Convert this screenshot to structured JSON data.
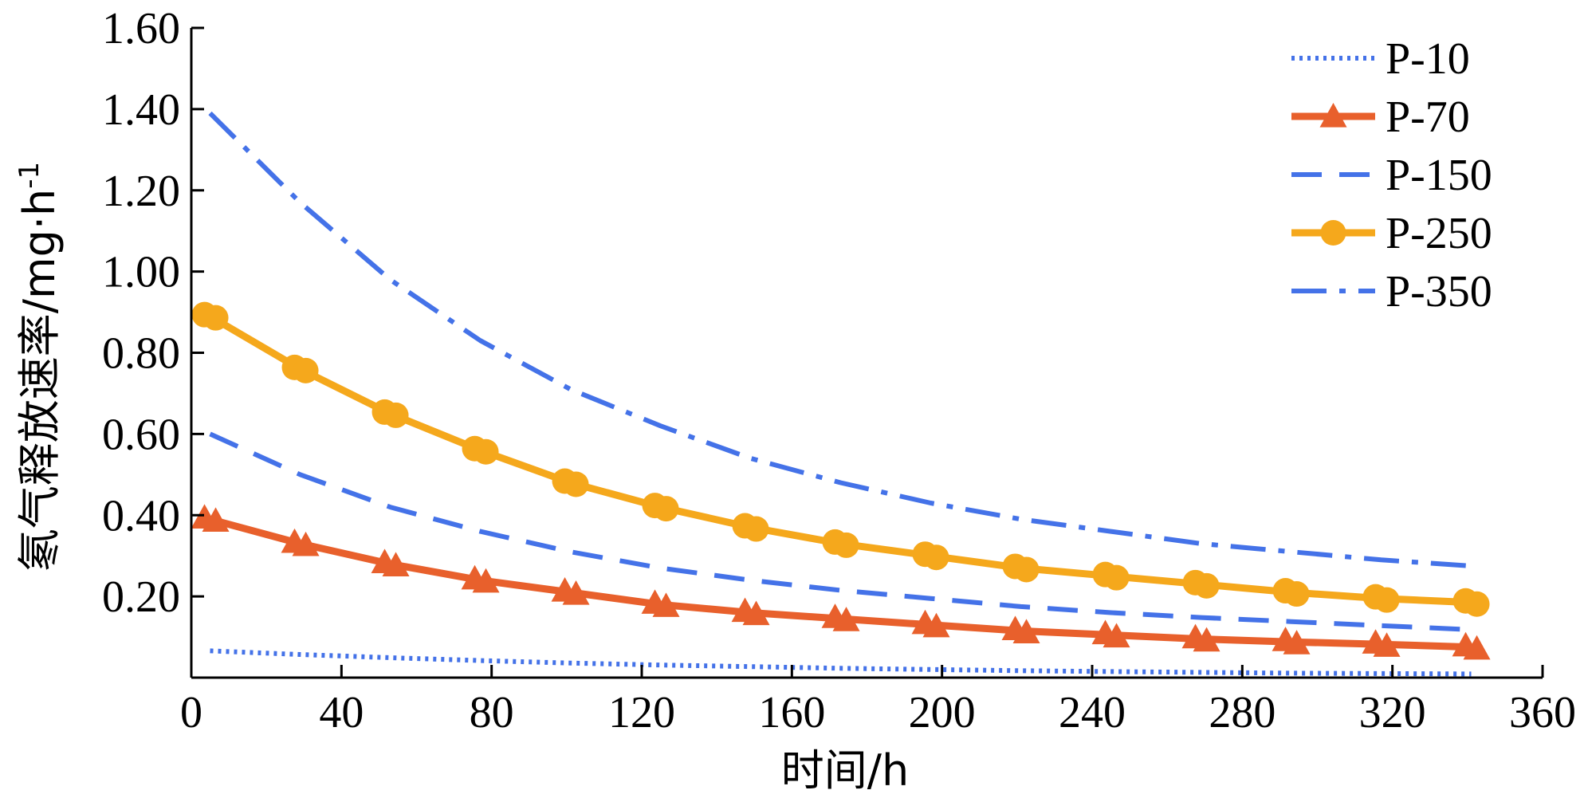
{
  "chart_data": {
    "type": "line",
    "title": "",
    "xlabel": "时间/h",
    "ylabel": "氡气释放速率/mg·h",
    "ylabel_superscript": "-1",
    "xlim": [
      0,
      360
    ],
    "ylim": [
      0,
      1.6
    ],
    "x_ticks": [
      0,
      40,
      80,
      120,
      160,
      200,
      240,
      280,
      320,
      360
    ],
    "x_tick_labels": [
      "0",
      "40",
      "80",
      "120",
      "160",
      "200",
      "240",
      "280",
      "320",
      "360"
    ],
    "y_ticks": [
      0.2,
      0.4,
      0.6,
      0.8,
      1.0,
      1.2,
      1.4,
      1.6
    ],
    "y_tick_labels": [
      "0.20",
      "0.40",
      "0.60",
      "0.80",
      "1.00",
      "1.20",
      "1.40",
      "1.60"
    ],
    "grid": false,
    "legend_position": "top-right",
    "x": [
      5,
      29,
      53,
      77,
      101,
      125,
      149,
      173,
      197,
      221,
      245,
      269,
      293,
      317,
      341
    ],
    "series": [
      {
        "name": "P-10",
        "style": "dotted",
        "color": "#4472E8",
        "marker": "none",
        "values": [
          0.066,
          0.057,
          0.049,
          0.042,
          0.036,
          0.031,
          0.027,
          0.023,
          0.02,
          0.017,
          0.015,
          0.013,
          0.011,
          0.01,
          0.009
        ]
      },
      {
        "name": "P-70",
        "style": "solid",
        "color": "#E8602C",
        "marker": "triangle",
        "values": [
          0.39,
          0.33,
          0.28,
          0.24,
          0.21,
          0.18,
          0.16,
          0.145,
          0.13,
          0.115,
          0.105,
          0.095,
          0.088,
          0.082,
          0.075
        ]
      },
      {
        "name": "P-150",
        "style": "dashed",
        "color": "#4472E8",
        "marker": "none",
        "values": [
          0.6,
          0.5,
          0.42,
          0.36,
          0.31,
          0.27,
          0.24,
          0.215,
          0.195,
          0.175,
          0.16,
          0.148,
          0.138,
          0.128,
          0.118
        ]
      },
      {
        "name": "P-250",
        "style": "solid",
        "color": "#F5A81C",
        "marker": "circle",
        "values": [
          0.89,
          0.76,
          0.65,
          0.56,
          0.48,
          0.42,
          0.37,
          0.33,
          0.3,
          0.27,
          0.25,
          0.23,
          0.21,
          0.195,
          0.185
        ]
      },
      {
        "name": "P-350",
        "style": "dashdot",
        "color": "#4472E8",
        "marker": "none",
        "values": [
          1.39,
          1.17,
          0.98,
          0.83,
          0.71,
          0.62,
          0.54,
          0.48,
          0.43,
          0.39,
          0.36,
          0.33,
          0.31,
          0.29,
          0.275
        ]
      }
    ]
  }
}
